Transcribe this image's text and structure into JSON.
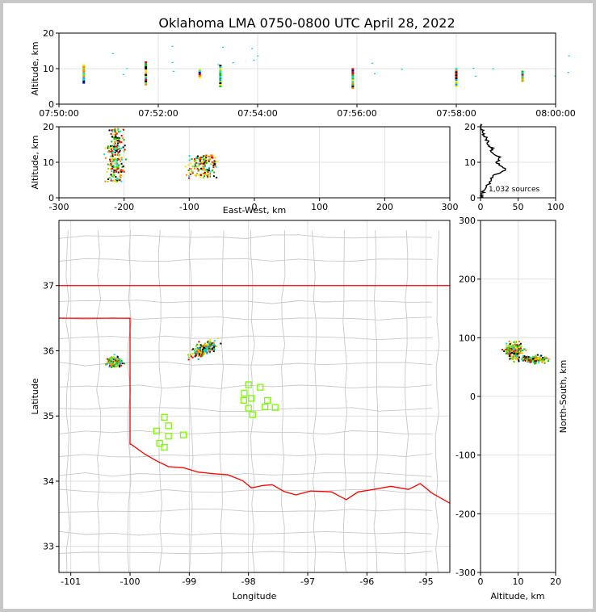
{
  "title": "Oklahoma LMA 0750-0800 UTC April 28, 2022",
  "colors": {
    "frame": "#c8c8c8",
    "grid": "#d8d8d8",
    "state": "#ff0000",
    "county": "#c8c8c8",
    "station": "#7cfc00"
  },
  "panels": {
    "time_alt": {
      "ylabel": "Altitude, km",
      "xticks": [
        "07:50:00",
        "07:52:00",
        "07:54:00",
        "07:56:00",
        "07:58:00",
        "08:00:00"
      ],
      "yticks": [
        "0",
        "10",
        "20"
      ]
    },
    "ew_alt": {
      "xlabel": "East-West, km",
      "ylabel": "Altitude, km",
      "xticks": [
        "-300",
        "-200",
        "-100",
        "0",
        "100",
        "200",
        "300"
      ],
      "yticks": [
        "0",
        "10",
        "20"
      ]
    },
    "hist": {
      "xticks": [
        "0",
        "50",
        "100"
      ],
      "yticks": [
        "0",
        "10",
        "20"
      ],
      "note": "1,032 sources"
    },
    "plan": {
      "xlabel": "Longitude",
      "ylabel": "Latitude",
      "xticks": [
        "-101",
        "-100",
        "-99",
        "-98",
        "-97",
        "-96",
        "-95"
      ],
      "yticks": [
        "33",
        "34",
        "35",
        "36",
        "37"
      ]
    },
    "alt_ns": {
      "xlabel": "Altitude, km",
      "ylabel": "North-South, km",
      "xticks": [
        "0",
        "10",
        "20"
      ],
      "yticks": [
        "-300",
        "-200",
        "-100",
        "0",
        "100",
        "200",
        "300"
      ]
    }
  },
  "chart_data": [
    {
      "type": "scatter",
      "panel": "time_alt",
      "xlim": [
        "07:50:00",
        "08:00:00"
      ],
      "ylim": [
        0,
        20
      ],
      "ylabel": "Altitude, km",
      "bursts": [
        {
          "t": "07:50:30",
          "alt_min": 6,
          "alt_max": 11
        },
        {
          "t": "07:51:45",
          "alt_min": 5.5,
          "alt_max": 12
        },
        {
          "t": "07:52:50",
          "alt_min": 7.5,
          "alt_max": 10
        },
        {
          "t": "07:53:15",
          "alt_min": 5,
          "alt_max": 11
        },
        {
          "t": "07:55:55",
          "alt_min": 4.5,
          "alt_max": 10
        },
        {
          "t": "07:58:00",
          "alt_min": 5,
          "alt_max": 10
        },
        {
          "t": "07:59:20",
          "alt_min": 6.5,
          "alt_max": 9.5
        }
      ]
    },
    {
      "type": "scatter",
      "panel": "ew_alt",
      "xlabel": "East-West, km",
      "ylabel": "Altitude, km",
      "xlim": [
        -300,
        300
      ],
      "ylim": [
        0,
        20
      ],
      "clusters": [
        {
          "x": -213,
          "x_spread": 12,
          "alt_min": 4.5,
          "alt_max": 19.5
        },
        {
          "x": -78,
          "x_spread": 22,
          "alt_min": 5.5,
          "alt_max": 12
        }
      ]
    },
    {
      "type": "line",
      "panel": "hist",
      "xlim": [
        0,
        100
      ],
      "ylim": [
        0,
        20
      ],
      "altitude": [
        0,
        1,
        2,
        3,
        4,
        5,
        6,
        7,
        8,
        9,
        10,
        11,
        12,
        13,
        14,
        15,
        16,
        17,
        18,
        19,
        20
      ],
      "count": [
        1,
        2,
        4,
        8,
        11,
        14,
        17,
        24,
        34,
        27,
        20,
        26,
        22,
        14,
        15,
        11,
        9,
        7,
        4,
        3,
        1
      ],
      "note": "1,032 sources"
    },
    {
      "type": "scatter",
      "panel": "plan",
      "xlabel": "Longitude",
      "ylabel": "Latitude",
      "xlim": [
        -101.2,
        -94.6
      ],
      "ylim": [
        32.6,
        38.0
      ],
      "clusters": [
        {
          "lon": -100.27,
          "lat": 35.83,
          "spread": 0.12
        },
        {
          "lon": -98.75,
          "lat": 36.03,
          "spread": 0.18
        }
      ],
      "stations": [
        [
          -98.0,
          35.48
        ],
        [
          -97.8,
          35.44
        ],
        [
          -98.07,
          35.35
        ],
        [
          -97.95,
          35.27
        ],
        [
          -98.08,
          35.24
        ],
        [
          -97.68,
          35.24
        ],
        [
          -98.0,
          35.12
        ],
        [
          -97.72,
          35.14
        ],
        [
          -97.55,
          35.13
        ],
        [
          -97.93,
          35.02
        ],
        [
          -99.42,
          34.98
        ],
        [
          -99.35,
          34.85
        ],
        [
          -99.55,
          34.77
        ],
        [
          -99.35,
          34.69
        ],
        [
          -99.1,
          34.71
        ],
        [
          -99.5,
          34.58
        ],
        [
          -99.42,
          34.52
        ]
      ]
    },
    {
      "type": "scatter",
      "panel": "alt_ns",
      "xlabel": "Altitude, km",
      "ylabel": "North-South, km",
      "xlim": [
        0,
        20
      ],
      "ylim": [
        -300,
        300
      ],
      "clusters": [
        {
          "alt": 9,
          "alt_spread": 2.5,
          "ns": 78,
          "ns_spread": 14
        },
        {
          "alt": 14,
          "alt_spread": 3.5,
          "ns": 63,
          "ns_spread": 6
        }
      ]
    }
  ]
}
